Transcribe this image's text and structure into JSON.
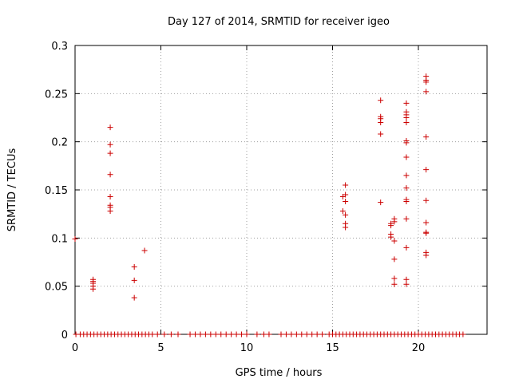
{
  "chart_data": {
    "type": "scatter",
    "title": "Day 127 of 2014, SRMTID for receiver igeo",
    "xlabel": "GPS time / hours",
    "ylabel": "SRMTID / TECUs",
    "xlim": [
      0,
      24
    ],
    "ylim": [
      0,
      0.3
    ],
    "grid": true,
    "marker": "+",
    "colors": {
      "points": "#cc0000",
      "grid": "#a0a0a0",
      "axes": "#000000"
    },
    "x_ticks": [
      {
        "value": 0,
        "label": "0"
      },
      {
        "value": 5,
        "label": "5"
      },
      {
        "value": 10,
        "label": "10"
      },
      {
        "value": 15,
        "label": "15"
      },
      {
        "value": 20,
        "label": "20"
      }
    ],
    "y_ticks": [
      {
        "value": 0,
        "label": "0"
      },
      {
        "value": 0.05,
        "label": "0.05"
      },
      {
        "value": 0.1,
        "label": "0.1"
      },
      {
        "value": 0.15,
        "label": "0.15"
      },
      {
        "value": 0.2,
        "label": "0.2"
      },
      {
        "value": 0.25,
        "label": "0.25"
      },
      {
        "value": 0.3,
        "label": "0.3"
      }
    ],
    "zero_baseline": {
      "y": 0,
      "x_values": [
        0.05,
        0.3,
        0.5,
        0.7,
        0.9,
        1.1,
        1.3,
        1.5,
        1.7,
        1.9,
        2.1,
        2.3,
        2.5,
        2.7,
        2.9,
        3.1,
        3.3,
        3.5,
        3.7,
        3.9,
        4.1,
        4.3,
        4.5,
        4.8,
        5.2,
        5.6,
        6.0,
        6.7,
        7.0,
        7.3,
        7.6,
        7.9,
        8.2,
        8.5,
        8.8,
        9.1,
        9.4,
        9.7,
        10.0,
        10.6,
        11.0,
        11.3,
        12.0,
        12.3,
        12.6,
        12.9,
        13.2,
        13.5,
        13.8,
        14.1,
        14.4,
        14.8,
        15.0,
        15.2,
        15.4,
        15.6,
        15.8,
        16.0,
        16.2,
        16.4,
        16.6,
        16.8,
        17.0,
        17.2,
        17.4,
        17.6,
        17.8,
        18.0,
        18.2,
        18.4,
        18.6,
        18.8,
        19.0,
        19.2,
        19.4,
        19.6,
        19.8,
        20.0,
        20.2,
        20.4,
        20.6,
        20.8,
        21.0,
        21.2,
        21.4,
        21.6,
        21.8,
        22.0,
        22.2,
        22.4,
        22.6
      ]
    },
    "series": [
      {
        "name": "SRMTID",
        "points": [
          [
            0.0,
            0.099
          ],
          [
            1.05,
            0.057
          ],
          [
            1.05,
            0.055
          ],
          [
            1.05,
            0.053
          ],
          [
            1.05,
            0.05
          ],
          [
            1.05,
            0.047
          ],
          [
            2.05,
            0.215
          ],
          [
            2.05,
            0.197
          ],
          [
            2.05,
            0.188
          ],
          [
            2.05,
            0.166
          ],
          [
            2.05,
            0.143
          ],
          [
            2.05,
            0.134
          ],
          [
            2.05,
            0.132
          ],
          [
            2.05,
            0.128
          ],
          [
            3.45,
            0.07
          ],
          [
            3.45,
            0.056
          ],
          [
            3.45,
            0.038
          ],
          [
            4.05,
            0.087
          ],
          [
            15.6,
            0.143
          ],
          [
            15.6,
            0.128
          ],
          [
            15.75,
            0.155
          ],
          [
            15.75,
            0.145
          ],
          [
            15.75,
            0.138
          ],
          [
            15.75,
            0.124
          ],
          [
            15.75,
            0.115
          ],
          [
            15.75,
            0.111
          ],
          [
            17.8,
            0.243
          ],
          [
            17.8,
            0.226
          ],
          [
            17.8,
            0.224
          ],
          [
            17.8,
            0.22
          ],
          [
            17.8,
            0.208
          ],
          [
            17.8,
            0.137
          ],
          [
            18.4,
            0.115
          ],
          [
            18.4,
            0.113
          ],
          [
            18.4,
            0.104
          ],
          [
            18.4,
            0.101
          ],
          [
            18.6,
            0.12
          ],
          [
            18.6,
            0.117
          ],
          [
            18.6,
            0.097
          ],
          [
            18.6,
            0.078
          ],
          [
            18.6,
            0.058
          ],
          [
            18.6,
            0.052
          ],
          [
            19.3,
            0.24
          ],
          [
            19.3,
            0.231
          ],
          [
            19.3,
            0.228
          ],
          [
            19.3,
            0.225
          ],
          [
            19.3,
            0.22
          ],
          [
            19.3,
            0.201
          ],
          [
            19.3,
            0.199
          ],
          [
            19.3,
            0.184
          ],
          [
            19.3,
            0.165
          ],
          [
            19.3,
            0.152
          ],
          [
            19.3,
            0.14
          ],
          [
            19.3,
            0.138
          ],
          [
            19.3,
            0.12
          ],
          [
            19.3,
            0.09
          ],
          [
            19.3,
            0.057
          ],
          [
            19.3,
            0.052
          ],
          [
            20.45,
            0.268
          ],
          [
            20.45,
            0.264
          ],
          [
            20.45,
            0.262
          ],
          [
            20.45,
            0.252
          ],
          [
            20.45,
            0.205
          ],
          [
            20.45,
            0.171
          ],
          [
            20.45,
            0.139
          ],
          [
            20.45,
            0.116
          ],
          [
            20.45,
            0.106
          ],
          [
            20.45,
            0.105
          ],
          [
            20.45,
            0.085
          ],
          [
            20.45,
            0.082
          ]
        ]
      }
    ]
  }
}
